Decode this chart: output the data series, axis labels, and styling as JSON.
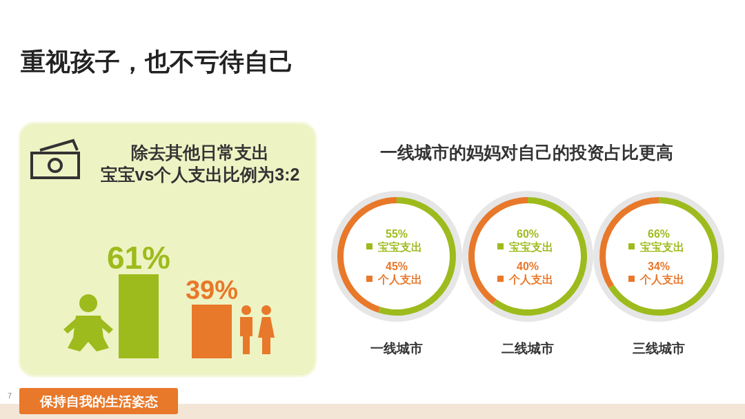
{
  "chart_data": [
    {
      "type": "bar",
      "title": "除去其他日常支出",
      "subtitle": "宝宝vs个人支出比例为3:2",
      "categories": [
        null,
        null
      ],
      "values": [
        61,
        39
      ],
      "colors": [
        "#9dbb1c",
        "#e8782a"
      ],
      "value_labels": [
        "61%",
        "39%"
      ],
      "annotations": [
        "重视孩子，也不亏待自己",
        "保持自我的生活姿态",
        "7"
      ]
    },
    {
      "type": "donut",
      "title": "一线城市的妈妈对自己的投资占比更高",
      "xlabel": "一线城市",
      "legend": "center",
      "categories": [
        "宝宝支出",
        "个人支出"
      ],
      "values": [
        55,
        45
      ],
      "colors": [
        "#9dbb1c",
        "#e8782a"
      ],
      "value_labels": [
        "55%",
        "45%"
      ]
    },
    {
      "type": "donut",
      "xlabel": "二线城市",
      "legend": "center",
      "categories": [
        "宝宝支出",
        "个人支出"
      ],
      "values": [
        60,
        40
      ],
      "colors": [
        "#9dbb1c",
        "#e8782a"
      ],
      "value_labels": [
        "60%",
        "40%"
      ]
    },
    {
      "type": "donut",
      "xlabel": "三线城市",
      "legend": "center",
      "categories": [
        "宝宝支出",
        "个人支出"
      ],
      "values": [
        66,
        34
      ],
      "colors": [
        "#9dbb1c",
        "#e8782a"
      ],
      "value_labels": [
        "66%",
        "34%"
      ]
    }
  ]
}
